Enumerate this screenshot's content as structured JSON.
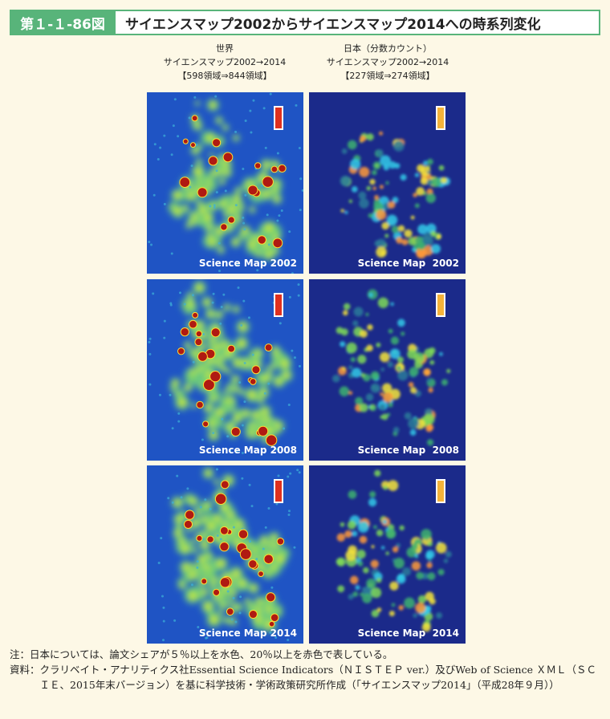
{
  "header": {
    "figure_number": "第１-１-86図",
    "title": "サイエンスマップ2002からサイエンスマップ2014への時系列変化"
  },
  "columns": [
    {
      "heading": "世界",
      "subheading": "サイエンスマップ2002→2014",
      "range": "【598領域⇒844領域】"
    },
    {
      "heading": "日本（分数カウント）",
      "subheading": "サイエンスマップ2002→2014",
      "range": "【227領域⇒274領域】"
    }
  ],
  "panels": [
    [
      "Science Map 2002",
      "Science Map  2002"
    ],
    [
      "Science Map 2008",
      "Science Map  2008"
    ],
    [
      "Science Map 2014",
      "Science Map  2014"
    ]
  ],
  "notes": [
    {
      "label": "注：",
      "text": "日本については、論文シェアが５％以上を水色、20％以上を赤色で表している。"
    },
    {
      "label": "資料：",
      "text": "クラリベイト・アナリティクス社Essential Science Indicators（ＮＩＳＴＥＰ ver.）及びWeb of Science ＸＭＬ（ＳＣＩＥ、2015年末バージョン）を基に科学技術・学術政策研究所作成（「サイエンスマップ2014」（平成28年９月））"
    }
  ]
}
